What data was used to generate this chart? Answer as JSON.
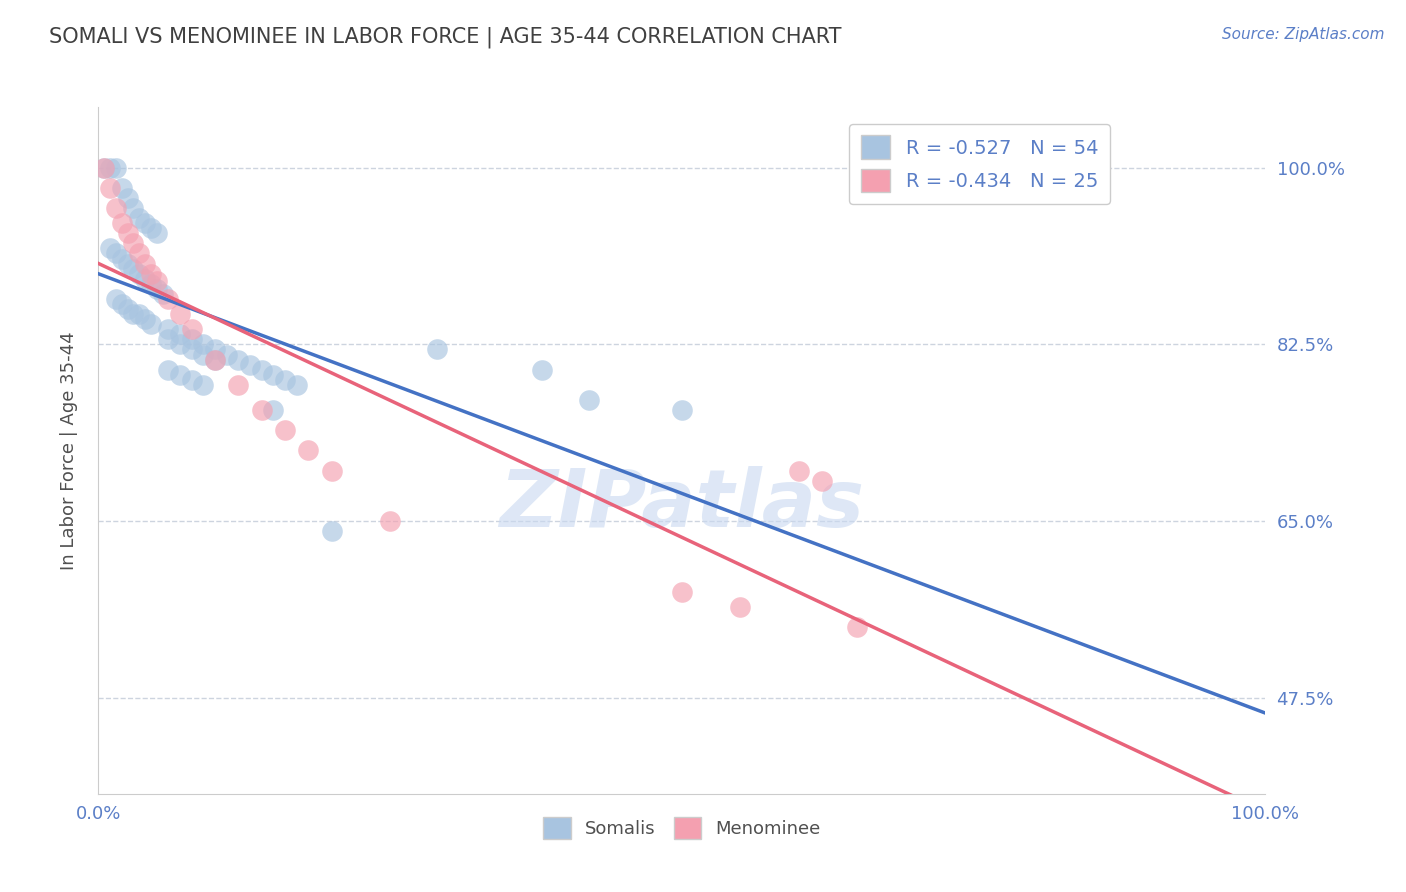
{
  "title": "SOMALI VS MENOMINEE IN LABOR FORCE | AGE 35-44 CORRELATION CHART",
  "source_text": "Source: ZipAtlas.com",
  "ylabel": "In Labor Force | Age 35-44",
  "xlim": [
    0.0,
    1.0
  ],
  "ylim": [
    0.38,
    1.06
  ],
  "yticks": [
    0.475,
    0.65,
    0.825,
    1.0
  ],
  "ytick_labels": [
    "47.5%",
    "65.0%",
    "82.5%",
    "100.0%"
  ],
  "xticks": [
    0.0,
    0.25,
    0.5,
    0.75,
    1.0
  ],
  "xtick_labels": [
    "0.0%",
    "",
    "",
    "",
    "100.0%"
  ],
  "somali_R": -0.527,
  "somali_N": 54,
  "menominee_R": -0.434,
  "menominee_N": 25,
  "somali_color": "#a8c4e0",
  "menominee_color": "#f4a0b0",
  "somali_line_color": "#4472c4",
  "menominee_line_color": "#e8637a",
  "dashed_line_color": "#aabbd8",
  "title_color": "#404040",
  "axis_label_color": "#505050",
  "tick_label_color": "#5b7fc7",
  "legend_R_color": "#5b7fc7",
  "background_color": "#ffffff",
  "watermark_text": "ZIPatlas",
  "watermark_color": "#c8d8f0",
  "somali_x": [
    0.005,
    0.01,
    0.015,
    0.02,
    0.025,
    0.03,
    0.035,
    0.04,
    0.045,
    0.05,
    0.01,
    0.015,
    0.02,
    0.025,
    0.03,
    0.035,
    0.04,
    0.045,
    0.05,
    0.055,
    0.015,
    0.02,
    0.025,
    0.03,
    0.035,
    0.04,
    0.045,
    0.06,
    0.07,
    0.08,
    0.09,
    0.1,
    0.11,
    0.12,
    0.13,
    0.14,
    0.15,
    0.16,
    0.17,
    0.06,
    0.07,
    0.08,
    0.09,
    0.1,
    0.06,
    0.07,
    0.08,
    0.09,
    0.42,
    0.5,
    0.29,
    0.38,
    0.15,
    0.2
  ],
  "somali_y": [
    1.0,
    1.0,
    1.0,
    0.98,
    0.97,
    0.96,
    0.95,
    0.945,
    0.94,
    0.935,
    0.92,
    0.915,
    0.91,
    0.905,
    0.9,
    0.895,
    0.89,
    0.885,
    0.88,
    0.875,
    0.87,
    0.865,
    0.86,
    0.855,
    0.855,
    0.85,
    0.845,
    0.84,
    0.835,
    0.83,
    0.825,
    0.82,
    0.815,
    0.81,
    0.805,
    0.8,
    0.795,
    0.79,
    0.785,
    0.83,
    0.825,
    0.82,
    0.815,
    0.81,
    0.8,
    0.795,
    0.79,
    0.785,
    0.77,
    0.76,
    0.82,
    0.8,
    0.76,
    0.64
  ],
  "menominee_x": [
    0.005,
    0.01,
    0.015,
    0.02,
    0.025,
    0.03,
    0.035,
    0.04,
    0.045,
    0.05,
    0.06,
    0.07,
    0.08,
    0.1,
    0.12,
    0.14,
    0.16,
    0.18,
    0.2,
    0.25,
    0.5,
    0.55,
    0.6,
    0.62,
    0.65
  ],
  "menominee_y": [
    1.0,
    0.98,
    0.96,
    0.945,
    0.935,
    0.925,
    0.915,
    0.905,
    0.895,
    0.888,
    0.87,
    0.855,
    0.84,
    0.81,
    0.785,
    0.76,
    0.74,
    0.72,
    0.7,
    0.65,
    0.58,
    0.565,
    0.7,
    0.69,
    0.545
  ]
}
